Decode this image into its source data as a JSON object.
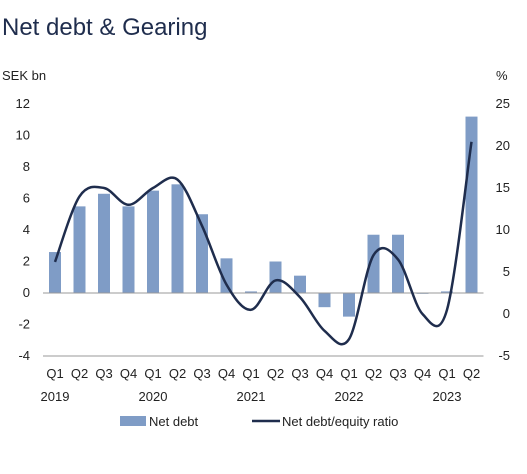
{
  "chart_data": {
    "type": "bar",
    "title": "Net debt & Gearing",
    "left_axis_unit": "SEK bn",
    "right_axis_unit": "%",
    "categories": [
      "Q1",
      "Q2",
      "Q3",
      "Q4",
      "Q1",
      "Q2",
      "Q3",
      "Q4",
      "Q1",
      "Q2",
      "Q3",
      "Q4",
      "Q1",
      "Q2",
      "Q3",
      "Q4",
      "Q1",
      "Q2"
    ],
    "year_labels": [
      {
        "label": "2019",
        "category_index": 0
      },
      {
        "label": "2020",
        "category_index": 4
      },
      {
        "label": "2021",
        "category_index": 8
      },
      {
        "label": "2022",
        "category_index": 12
      },
      {
        "label": "2023",
        "category_index": 16
      }
    ],
    "ylim_left": [
      -4,
      12
    ],
    "yticks_left": [
      -4,
      -2,
      0,
      2,
      4,
      6,
      8,
      10,
      12
    ],
    "ylim_right": [
      -5,
      25
    ],
    "yticks_right": [
      -5,
      0,
      5,
      10,
      15,
      20,
      25
    ],
    "series": [
      {
        "name": "Net debt",
        "type": "bar",
        "axis": "left",
        "color": "#7f9cc6",
        "values": [
          2.6,
          5.5,
          6.3,
          5.5,
          6.5,
          6.9,
          5.0,
          2.2,
          0.1,
          2.0,
          1.1,
          -0.9,
          -1.5,
          3.7,
          3.7,
          0.0,
          0.1,
          11.2
        ]
      },
      {
        "name": "Net debt/equity ratio",
        "type": "line",
        "axis": "right",
        "color": "#1f2d4d",
        "values": [
          6.2,
          14.0,
          15.0,
          13.0,
          15.0,
          16.0,
          10.5,
          3.5,
          0.5,
          4.0,
          2.0,
          -2.0,
          -3.0,
          7.0,
          6.5,
          0.0,
          0.5,
          20.5
        ]
      }
    ],
    "grid": false,
    "legend_position": "bottom"
  }
}
